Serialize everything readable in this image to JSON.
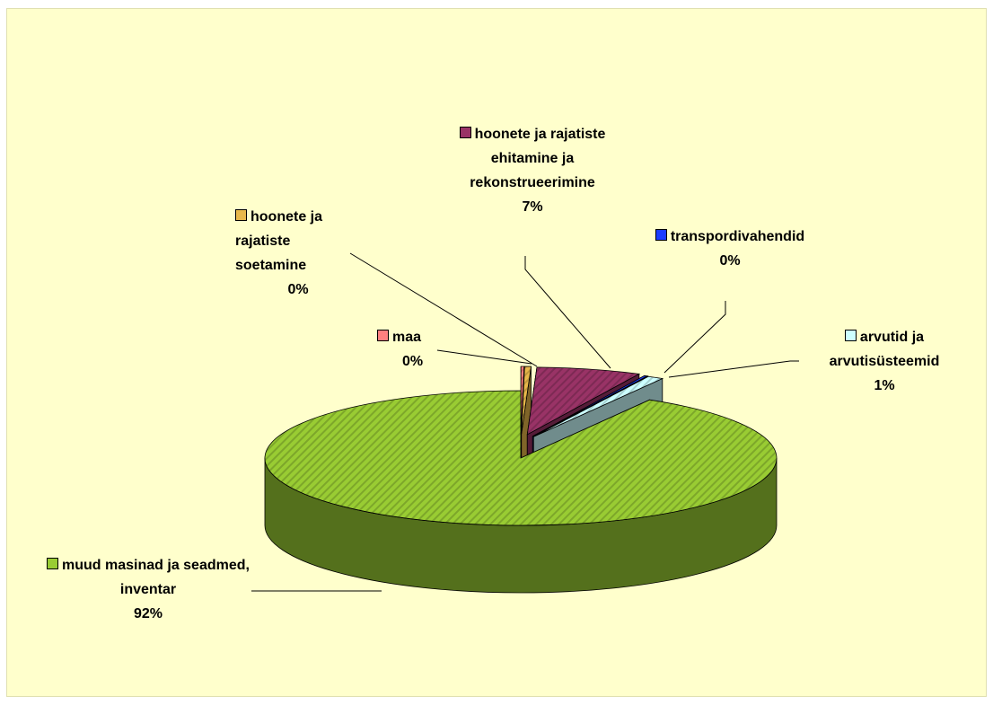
{
  "chart_data": {
    "type": "pie3d",
    "categories": [
      "maa",
      "hoonete ja rajatiste soetamine",
      "hoonete ja rajatiste ehitamine ja rekonstrueerimine",
      "transpordivahendid",
      "arvutid ja arvutisüsteemid",
      "muud masinad ja seadmed, inventar"
    ],
    "values": [
      0.2,
      0.4,
      6.6,
      0.2,
      1.0,
      91.6
    ],
    "value_labels": [
      "0%",
      "0%",
      "7%",
      "0%",
      "1%",
      "92%"
    ],
    "colors": [
      "#ff8080",
      "#e8b84a",
      "#993366",
      "#1a3cff",
      "#ccffff",
      "#99cc33"
    ]
  }
}
